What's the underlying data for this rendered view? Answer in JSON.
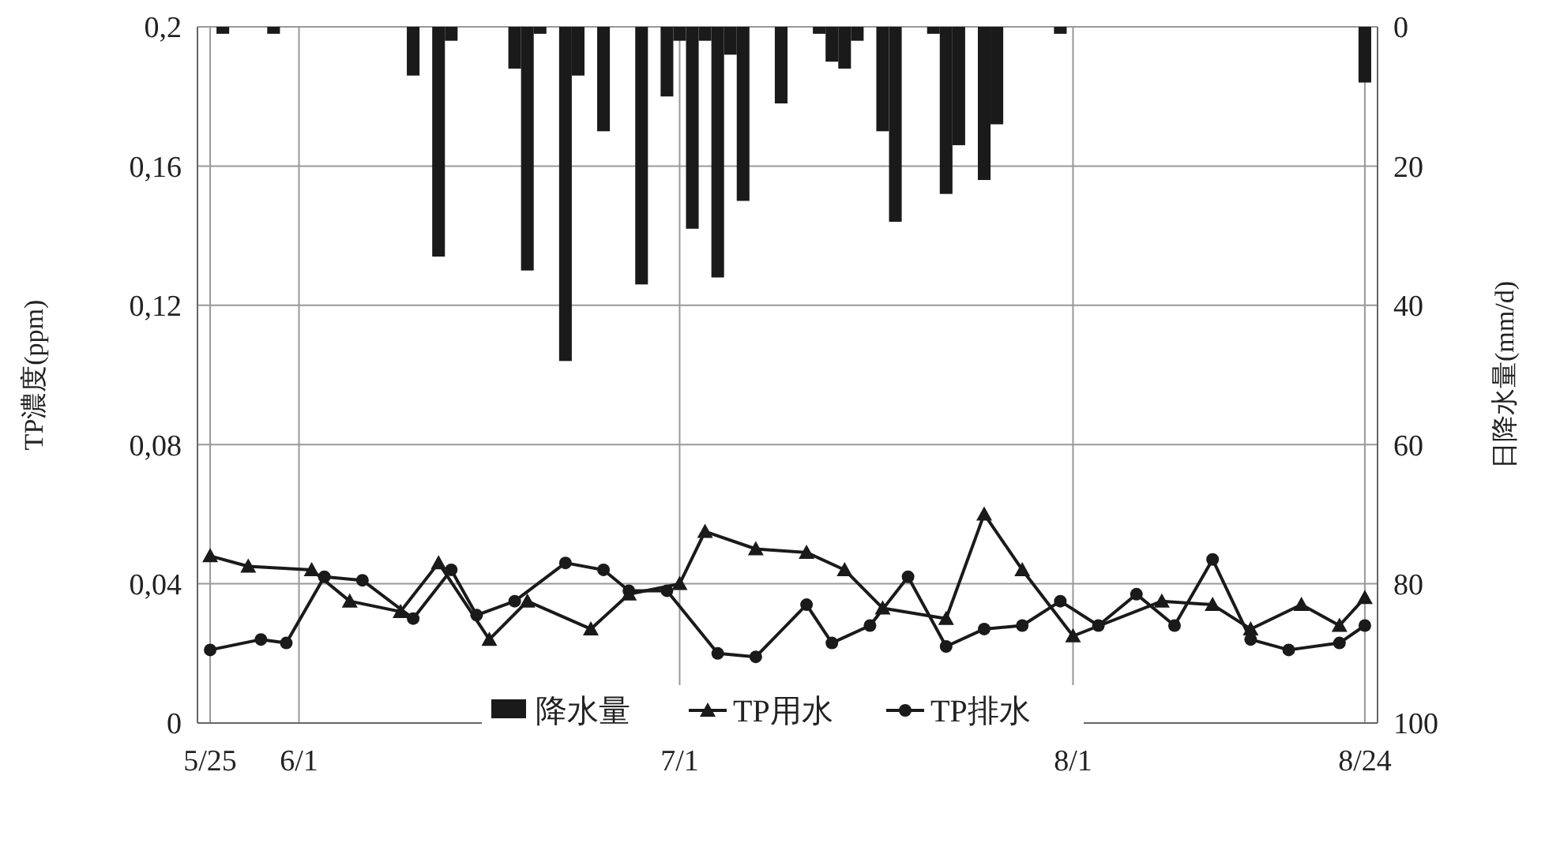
{
  "chart_data": {
    "type": "line",
    "ylabel": "TP濃度(ppm)",
    "y2label": "日降水量(mm/d)",
    "xlim": [
      "--05-24",
      "--08-25"
    ],
    "xticks": [
      {
        "value": "--05-25",
        "label": "5/25"
      },
      {
        "value": "--06-01",
        "label": "6/1"
      },
      {
        "value": "--07-01",
        "label": "7/1"
      },
      {
        "value": "--08-01",
        "label": "8/1"
      },
      {
        "value": "--08-24",
        "label": "8/24"
      }
    ],
    "ylim": [
      0,
      0.2
    ],
    "yticks": [
      {
        "value": 0,
        "label": "0"
      },
      {
        "value": 0.04,
        "label": "0,04"
      },
      {
        "value": 0.08,
        "label": "0,08"
      },
      {
        "value": 0.12,
        "label": "0,12"
      },
      {
        "value": 0.16,
        "label": "0,16"
      },
      {
        "value": 0.2,
        "label": "0,2"
      }
    ],
    "y2lim": [
      100,
      0
    ],
    "y2ticks": [
      0,
      20,
      40,
      60,
      80,
      100
    ],
    "grid": true,
    "legend": "bottom",
    "series": [
      {
        "name": "降水量",
        "type": "bar",
        "axis": "y2",
        "color": "#1a1a1a",
        "x": [
          "--05-26",
          "--05-30",
          "--06-10",
          "--06-12",
          "--06-13",
          "--06-18",
          "--06-19",
          "--06-20",
          "--06-22",
          "--06-23",
          "--06-25",
          "--06-28",
          "--06-30",
          "--07-01",
          "--07-02",
          "--07-03",
          "--07-04",
          "--07-05",
          "--07-06",
          "--07-09",
          "--07-12",
          "--07-13",
          "--07-14",
          "--07-15",
          "--07-17",
          "--07-18",
          "--07-21",
          "--07-22",
          "--07-23",
          "--07-25",
          "--07-26",
          "--07-31",
          "--08-24"
        ],
        "values": [
          1,
          1,
          7,
          33,
          2,
          6,
          35,
          1,
          48,
          7,
          15,
          37,
          10,
          2,
          29,
          2,
          36,
          4,
          25,
          11,
          1,
          5,
          6,
          2,
          15,
          28,
          1,
          24,
          17,
          22,
          14,
          1,
          8
        ]
      },
      {
        "name": "TP用水",
        "marker": "triangle",
        "color": "#1a1a1a",
        "x": [
          "--05-25",
          "--05-28",
          "--06-02",
          "--06-05",
          "--06-09",
          "--06-12",
          "--06-16",
          "--06-19",
          "--06-24",
          "--06-27",
          "--07-01",
          "--07-03",
          "--07-07",
          "--07-11",
          "--07-14",
          "--07-17",
          "--07-22",
          "--07-25",
          "--07-28",
          "--08-01",
          "--08-08",
          "--08-12",
          "--08-15",
          "--08-19",
          "--08-22",
          "--08-24"
        ],
        "values": [
          0.048,
          0.045,
          0.044,
          0.035,
          0.032,
          0.046,
          0.024,
          0.035,
          0.027,
          0.037,
          0.04,
          0.055,
          0.05,
          0.049,
          0.044,
          0.033,
          0.03,
          0.06,
          0.044,
          0.025,
          0.035,
          0.034,
          0.027,
          0.034,
          0.028,
          0.036
        ]
      },
      {
        "name": "TP排水",
        "marker": "circle",
        "color": "#1a1a1a",
        "x": [
          "--05-25",
          "--05-29",
          "--05-31",
          "--06-03",
          "--06-06",
          "--06-10",
          "--06-13",
          "--06-15",
          "--06-18",
          "--06-22",
          "--06-25",
          "--06-27",
          "--06-30",
          "--07-04",
          "--07-07",
          "--07-11",
          "--07-13",
          "--07-16",
          "--07-19",
          "--07-22",
          "--07-25",
          "--07-28",
          "--07-31",
          "--08-03",
          "--08-06",
          "--08-09",
          "--08-12",
          "--08-15",
          "--08-18",
          "--08-22",
          "--08-24"
        ],
        "values": [
          0.021,
          0.024,
          0.023,
          0.042,
          0.041,
          0.03,
          0.044,
          0.031,
          0.035,
          0.046,
          0.044,
          0.038,
          0.038,
          0.02,
          0.019,
          0.034,
          0.023,
          0.028,
          0.042,
          0.022,
          0.027,
          0.028,
          0.035,
          0.028,
          0.037,
          0.028,
          0.047,
          0.024,
          0.021,
          0.023,
          0.028
        ]
      }
    ]
  }
}
